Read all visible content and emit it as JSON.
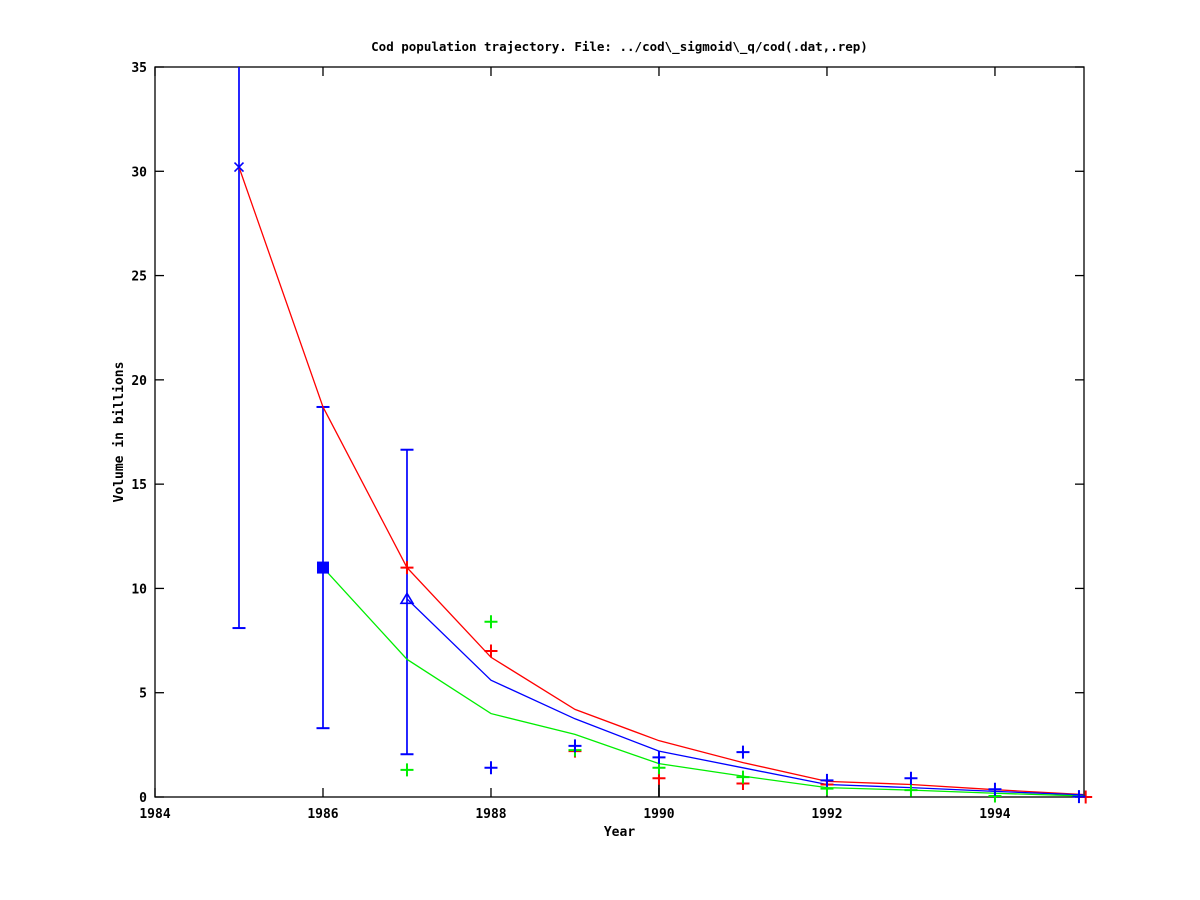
{
  "page": {
    "background": "#ffffff"
  },
  "chart_data": {
    "type": "line",
    "title": "Cod population trajectory. File: ../cod\\_sigmoid\\_q/cod(.dat,.rep)",
    "xlabel": "Year",
    "ylabel": "Volume in billions",
    "xlim": [
      1984,
      1995.06
    ],
    "ylim": [
      0,
      35
    ],
    "xticks": [
      1984,
      1986,
      1988,
      1990,
      1992,
      1994
    ],
    "yticks": [
      0,
      5,
      10,
      15,
      20,
      25,
      30,
      35
    ],
    "grid": false,
    "legend": "none",
    "colors": {
      "red": "#ff0000",
      "green": "#00ee00",
      "blue": "#0000ff",
      "black": "#000000"
    },
    "series": [
      {
        "name": "red-model-line",
        "type": "line",
        "color": "red",
        "points": [
          [
            1985,
            30.2
          ],
          [
            1986,
            18.7
          ],
          [
            1987,
            11.0
          ],
          [
            1988,
            6.7
          ],
          [
            1989,
            4.2
          ],
          [
            1990,
            2.7
          ],
          [
            1991,
            1.65
          ],
          [
            1992,
            0.75
          ],
          [
            1993,
            0.6
          ],
          [
            1994,
            0.35
          ],
          [
            1995.05,
            0.12
          ]
        ]
      },
      {
        "name": "blue-model-line",
        "type": "line",
        "color": "blue",
        "points": [
          [
            1987,
            9.5
          ],
          [
            1988,
            5.6
          ],
          [
            1989,
            3.75
          ],
          [
            1990,
            2.2
          ],
          [
            1991,
            1.4
          ],
          [
            1992,
            0.6
          ],
          [
            1993,
            0.45
          ],
          [
            1994,
            0.27
          ],
          [
            1995.05,
            0.1
          ]
        ]
      },
      {
        "name": "green-model-line",
        "type": "line",
        "color": "green",
        "points": [
          [
            1986,
            11.0
          ],
          [
            1987,
            6.6
          ],
          [
            1988,
            4.0
          ],
          [
            1989,
            3.0
          ],
          [
            1990,
            1.6
          ],
          [
            1991,
            1.0
          ],
          [
            1992,
            0.45
          ],
          [
            1993,
            0.33
          ],
          [
            1994,
            0.18
          ],
          [
            1995.05,
            0.05
          ]
        ]
      },
      {
        "name": "red-plus-points",
        "type": "scatter",
        "marker": "plus",
        "color": "red",
        "points": [
          [
            1987,
            11.0
          ],
          [
            1988,
            7.0
          ],
          [
            1989,
            2.2
          ],
          [
            1990,
            0.9
          ],
          [
            1991,
            0.65
          ],
          [
            1992,
            0.6
          ],
          [
            1995.08,
            0.0
          ]
        ]
      },
      {
        "name": "green-plus-points",
        "type": "scatter",
        "marker": "plus",
        "color": "green",
        "points": [
          [
            1987,
            1.3
          ],
          [
            1988,
            8.4
          ],
          [
            1989,
            2.25
          ],
          [
            1990,
            1.4
          ],
          [
            1991,
            0.95
          ],
          [
            1992,
            0.4
          ],
          [
            1993,
            0.33
          ],
          [
            1994,
            0.05
          ]
        ]
      },
      {
        "name": "blue-plus-points",
        "type": "scatter",
        "marker": "plus",
        "color": "blue",
        "points": [
          [
            1988,
            1.4
          ],
          [
            1989,
            2.45
          ],
          [
            1990,
            1.9
          ],
          [
            1991,
            2.15
          ],
          [
            1992,
            0.8
          ],
          [
            1993,
            0.9
          ],
          [
            1994,
            0.37
          ],
          [
            1995,
            0.02
          ]
        ]
      }
    ],
    "errorbars": [
      {
        "x": 1985,
        "y": 30.2,
        "lo": 8.1,
        "hi": 35.0,
        "hi_clipped": true,
        "caps": true,
        "marker": "x",
        "color": "blue"
      },
      {
        "x": 1986,
        "y": 11.0,
        "lo": 3.3,
        "hi": 18.7,
        "hi_clipped": false,
        "caps": true,
        "marker": "filled-square",
        "color": "blue"
      },
      {
        "x": 1987,
        "y": 9.5,
        "lo": 2.05,
        "hi": 16.65,
        "hi_clipped": false,
        "caps": true,
        "marker": "open-triangle",
        "color": "blue"
      },
      {
        "x": 1990,
        "y": 1.9,
        "lo": 0.0,
        "hi": 1.9,
        "hi_clipped": true,
        "caps": false,
        "marker": "none",
        "color": "black"
      }
    ]
  }
}
